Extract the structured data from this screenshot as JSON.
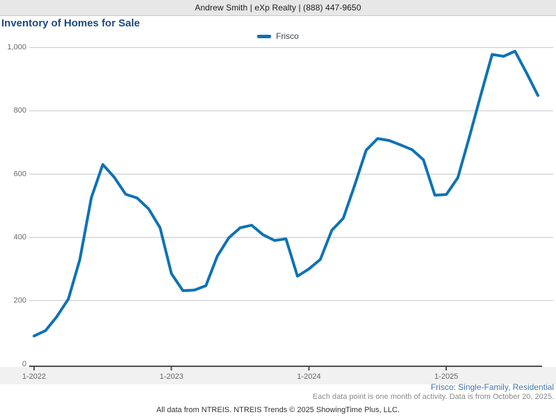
{
  "header": {
    "contact_text": "Andrew Smith | eXp Realty | (888) 447-9650"
  },
  "title": "Inventory of Homes for Sale",
  "legend": {
    "label": "Frisco",
    "color": "#0e72b5"
  },
  "colors": {
    "accent_line": "#0e72b5",
    "title_text": "#1b4a7e",
    "grid": "#c9c9c9",
    "axis": "#4d4d4d",
    "tick_label": "#666666",
    "band_background": "#f1f1f1",
    "footer_link_blue": "#4173a9"
  },
  "chart_data": {
    "type": "line",
    "title": "Inventory of Homes for Sale",
    "xlabel": "",
    "ylabel": "",
    "grid": true,
    "legend_position": "top-center",
    "ylim": [
      0,
      1000
    ],
    "ytick_values": [
      0,
      200,
      400,
      600,
      800,
      1000
    ],
    "ytick_labels": [
      "0",
      "200",
      "400",
      "600",
      "800",
      "1,000"
    ],
    "xtick_indices": [
      0,
      12,
      24,
      36
    ],
    "xtick_labels": [
      "1-2022",
      "1-2023",
      "1-2024",
      "1-2025"
    ],
    "x_months": [
      "1-2022",
      "2-2022",
      "3-2022",
      "4-2022",
      "5-2022",
      "6-2022",
      "7-2022",
      "8-2022",
      "9-2022",
      "10-2022",
      "11-2022",
      "12-2022",
      "1-2023",
      "2-2023",
      "3-2023",
      "4-2023",
      "5-2023",
      "6-2023",
      "7-2023",
      "8-2023",
      "9-2023",
      "10-2023",
      "11-2023",
      "12-2023",
      "1-2024",
      "2-2024",
      "3-2024",
      "4-2024",
      "5-2024",
      "6-2024",
      "7-2024",
      "8-2024",
      "9-2024",
      "10-2024",
      "11-2024",
      "12-2024",
      "1-2025",
      "2-2025",
      "3-2025",
      "4-2025",
      "5-2025",
      "6-2025",
      "7-2025",
      "8-2025",
      "9-2025"
    ],
    "series": [
      {
        "name": "Frisco",
        "color": "#0e72b5",
        "values": [
          88,
          105,
          150,
          205,
          330,
          525,
          630,
          590,
          536,
          524,
          490,
          430,
          285,
          231,
          233,
          247,
          340,
          398,
          430,
          438,
          408,
          390,
          395,
          277,
          300,
          330,
          422,
          460,
          565,
          675,
          712,
          706,
          692,
          677,
          645,
          533,
          535,
          588,
          715,
          848,
          978,
          972,
          988,
          920,
          848
        ]
      }
    ]
  },
  "footer": {
    "series_note": "Frisco: Single-Family, Residential",
    "data_note": "Each data point is one month of activity. Data is from October 20, 2025.",
    "attribution": "All data from NTREIS. NTREIS Trends © 2025 ShowingTime Plus, LLC."
  }
}
